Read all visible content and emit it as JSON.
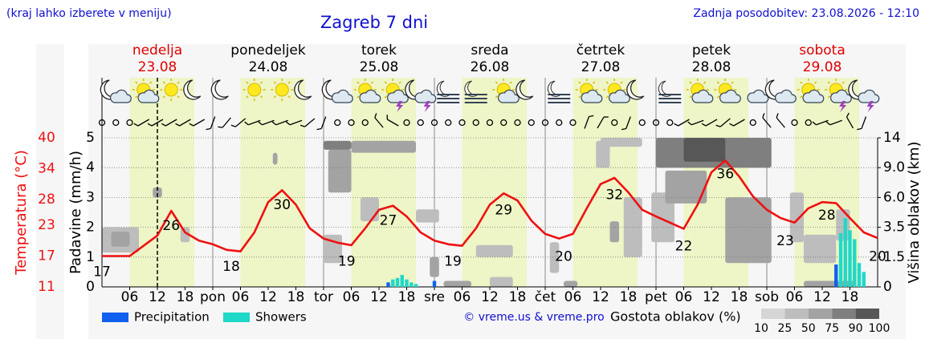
{
  "chart_data": {
    "type": "meteogram",
    "title": "Zagreb 7 dni",
    "subtitle_left": "(kraj lahko izberete v meniju)",
    "updated": "Zadnja posodobitev: 23.08.2026 - 12:10",
    "copyright": "© vreme.us & vreme.pro",
    "days": [
      {
        "name": "nedelja",
        "date": "23.08",
        "weekend": true
      },
      {
        "name": "ponedeljek",
        "date": "24.08",
        "weekend": false
      },
      {
        "name": "torek",
        "date": "25.08",
        "weekend": false
      },
      {
        "name": "sreda",
        "date": "26.08",
        "weekend": false
      },
      {
        "name": "četrtek",
        "date": "27.08",
        "weekend": false
      },
      {
        "name": "petek",
        "date": "28.08",
        "weekend": false
      },
      {
        "name": "sobota",
        "date": "29.08",
        "weekend": true
      }
    ],
    "xlim": [
      0,
      168
    ],
    "xticks": [
      {
        "value": 6,
        "label": "06"
      },
      {
        "value": 12,
        "label": "12"
      },
      {
        "value": 18,
        "label": "18"
      },
      {
        "value": 24,
        "label": "pon"
      },
      {
        "value": 30,
        "label": "06"
      },
      {
        "value": 36,
        "label": "12"
      },
      {
        "value": 42,
        "label": "18"
      },
      {
        "value": 48,
        "label": "tor"
      },
      {
        "value": 54,
        "label": "06"
      },
      {
        "value": 60,
        "label": "12"
      },
      {
        "value": 66,
        "label": "18"
      },
      {
        "value": 72,
        "label": "sre"
      },
      {
        "value": 78,
        "label": "06"
      },
      {
        "value": 84,
        "label": "12"
      },
      {
        "value": 90,
        "label": "18"
      },
      {
        "value": 96,
        "label": "čet"
      },
      {
        "value": 102,
        "label": "06"
      },
      {
        "value": 108,
        "label": "12"
      },
      {
        "value": 114,
        "label": "18"
      },
      {
        "value": 120,
        "label": "pet"
      },
      {
        "value": 126,
        "label": "06"
      },
      {
        "value": 132,
        "label": "12"
      },
      {
        "value": 138,
        "label": "18"
      },
      {
        "value": 144,
        "label": "sob"
      },
      {
        "value": 150,
        "label": "06"
      },
      {
        "value": 156,
        "label": "12"
      },
      {
        "value": 162,
        "label": "18"
      }
    ],
    "ylabel": "Padavine (mm/h)",
    "ylim": [
      0,
      5
    ],
    "yticks": [
      0,
      1,
      2,
      3,
      4,
      5
    ],
    "grid": true,
    "y2label": "Višina oblakov (km)",
    "y2lim": [
      0,
      14
    ],
    "y2ticks": [
      0,
      1.5,
      3.5,
      {
        "value": 6,
        "label": "6.0"
      },
      {
        "value": 9,
        "label": "9.0"
      },
      14
    ],
    "now": 12,
    "daylight": [
      [
        6,
        20
      ],
      [
        30,
        44
      ],
      [
        54,
        68
      ],
      [
        78,
        92
      ],
      [
        102,
        116
      ],
      [
        126,
        140
      ],
      [
        150,
        164
      ]
    ],
    "temperature": {
      "label": "Temperatura (°C)",
      "color": "#ee1111",
      "lim": [
        11,
        40
      ],
      "ticks": [
        11,
        17,
        23,
        28,
        34,
        40
      ],
      "x": [
        0,
        3,
        6,
        9,
        12,
        15,
        18,
        21,
        24,
        27,
        30,
        33,
        36,
        39,
        42,
        45,
        48,
        51,
        54,
        57,
        60,
        63,
        66,
        69,
        72,
        75,
        78,
        81,
        84,
        87,
        90,
        93,
        96,
        99,
        102,
        105,
        108,
        111,
        114,
        117,
        120,
        123,
        126,
        129,
        132,
        135,
        138,
        141,
        144,
        147,
        150,
        153,
        156,
        159,
        162,
        165,
        168
      ],
      "values": [
        17,
        17,
        17,
        19,
        21,
        25.8,
        21.6,
        20,
        19.3,
        18.2,
        17.9,
        21.6,
        27.5,
        29.8,
        27,
        22.4,
        20.4,
        19.6,
        19.1,
        22.4,
        26,
        26.8,
        24.7,
        21.6,
        20,
        19.3,
        19,
        22.4,
        27,
        29.2,
        27.8,
        23.9,
        21.3,
        20.4,
        21.3,
        26.3,
        31,
        32.2,
        29.4,
        26,
        24.7,
        23.5,
        22.3,
        27,
        33.3,
        35.6,
        32.5,
        28.6,
        26,
        24.4,
        23.5,
        26.3,
        27.5,
        27.3,
        24.4,
        21.6,
        20.5
      ],
      "extremes": [
        {
          "x": 0,
          "value": 17
        },
        {
          "x": 15,
          "value": 26
        },
        {
          "x": 28,
          "value": 18
        },
        {
          "x": 39,
          "value": 30
        },
        {
          "x": 53,
          "value": 19
        },
        {
          "x": 62,
          "value": 27
        },
        {
          "x": 76,
          "value": 19
        },
        {
          "x": 87,
          "value": 29
        },
        {
          "x": 100,
          "value": 20
        },
        {
          "x": 111,
          "value": 32
        },
        {
          "x": 126,
          "value": 22
        },
        {
          "x": 135,
          "value": 36
        },
        {
          "x": 148,
          "value": 23
        },
        {
          "x": 157,
          "value": 28
        },
        {
          "x": 168,
          "value": 20
        }
      ]
    },
    "series": [
      {
        "name": "Precipitation",
        "color": "#1060f0",
        "x": [
          62,
          72,
          159
        ],
        "values": [
          0.15,
          0.2,
          0.75
        ]
      },
      {
        "name": "Showers",
        "color": "#20d8c8",
        "x": [
          63,
          64,
          65,
          66,
          67,
          68,
          160,
          161,
          162,
          163,
          164,
          165
        ],
        "values": [
          0.25,
          0.3,
          0.4,
          0.25,
          0.15,
          0.1,
          1.8,
          2.3,
          1.9,
          1.6,
          0.8,
          0.5
        ]
      }
    ],
    "clouds": {
      "label": "Gostota oblakov (%)",
      "ticks": [
        10,
        25,
        50,
        75,
        90,
        100
      ],
      "colors": [
        "#d6d6d6",
        "#bdbdbd",
        "#a3a3a3",
        "#7f7f7f",
        "#575757"
      ],
      "cells": [
        [
          0,
          8,
          1.8,
          3.5,
          35
        ],
        [
          2,
          6,
          2.2,
          3.2,
          60
        ],
        [
          11,
          13,
          6,
          7,
          50
        ],
        [
          17,
          19,
          2.5,
          3.5,
          25
        ],
        [
          37,
          38,
          9.5,
          11.5,
          60
        ],
        [
          54,
          68,
          11.5,
          13.5,
          70
        ],
        [
          49,
          54,
          6.5,
          12,
          60
        ],
        [
          48,
          54,
          12,
          13.5,
          80
        ],
        [
          56,
          60,
          4,
          6,
          40
        ],
        [
          68,
          73,
          3.9,
          5,
          40
        ],
        [
          48,
          52,
          1.2,
          3,
          30
        ],
        [
          71,
          73,
          0.5,
          1.5,
          50
        ],
        [
          74,
          80,
          0,
          0.3,
          60
        ],
        [
          84,
          89,
          0,
          0.5,
          40
        ],
        [
          81,
          89,
          1.5,
          2.3,
          25
        ],
        [
          97,
          99,
          0.7,
          2.5,
          35
        ],
        [
          100,
          103,
          0,
          0.3,
          60
        ],
        [
          107,
          110,
          9,
          13.5,
          40
        ],
        [
          108,
          117,
          12.5,
          14,
          30
        ],
        [
          113,
          117,
          1.5,
          6,
          45
        ],
        [
          119,
          124,
          2.5,
          6.5,
          40
        ],
        [
          110,
          112,
          2.5,
          4,
          55
        ],
        [
          120,
          145,
          9,
          14,
          75
        ],
        [
          126,
          135,
          10,
          14,
          90
        ],
        [
          122,
          131,
          5.5,
          8.7,
          50
        ],
        [
          135,
          145,
          1.2,
          6,
          50
        ],
        [
          149,
          152,
          2.5,
          6.5,
          45
        ],
        [
          152,
          159,
          1.2,
          3,
          40
        ],
        [
          159,
          162,
          2.6,
          5,
          40
        ],
        [
          152,
          163,
          0,
          0.3,
          60
        ]
      ]
    },
    "weather": {
      "x": [
        3,
        9,
        15,
        21,
        27,
        33,
        39,
        45,
        51,
        57,
        63,
        69,
        75,
        81,
        87,
        93,
        99,
        105,
        111,
        117,
        123,
        129,
        135,
        141,
        147,
        153,
        159,
        165
      ],
      "icons": [
        "moon-cloud",
        "sun-cloud",
        "sun",
        "moon",
        "moon",
        "sun",
        "sun",
        "moon",
        "moon-cloud",
        "sun-cloud",
        "sun-storm",
        "moon-storm",
        "fog",
        "fog",
        "sun-cloud",
        "moon",
        "fog",
        "sun-cloud",
        "sun-cloud",
        "moon",
        "fog",
        "sun-cloud",
        "sun-cloud",
        "cloud",
        "moon-cloud",
        "sun-cloud",
        "sun-storm",
        "moon-storm"
      ]
    },
    "wind": {
      "x": [
        0,
        3,
        6,
        9,
        12,
        15,
        18,
        21,
        24,
        27,
        30,
        33,
        36,
        39,
        42,
        45,
        48,
        51,
        54,
        57,
        60,
        63,
        66,
        69,
        72,
        75,
        78,
        81,
        84,
        87,
        90,
        93,
        96,
        99,
        102,
        105,
        108,
        111,
        114,
        117,
        120,
        123,
        126,
        129,
        132,
        135,
        138,
        141,
        144,
        147,
        150,
        153,
        156,
        159,
        162,
        165
      ],
      "directions": [
        null,
        null,
        null,
        240,
        240,
        240,
        240,
        240,
        200,
        220,
        230,
        250,
        250,
        250,
        250,
        230,
        200,
        null,
        null,
        null,
        320,
        300,
        null,
        null,
        null,
        null,
        null,
        null,
        null,
        null,
        null,
        null,
        null,
        null,
        null,
        20,
        30,
        null,
        200,
        null,
        null,
        null,
        240,
        250,
        240,
        230,
        240,
        null,
        320,
        320,
        null,
        null,
        250,
        250,
        330,
        200
      ]
    }
  }
}
